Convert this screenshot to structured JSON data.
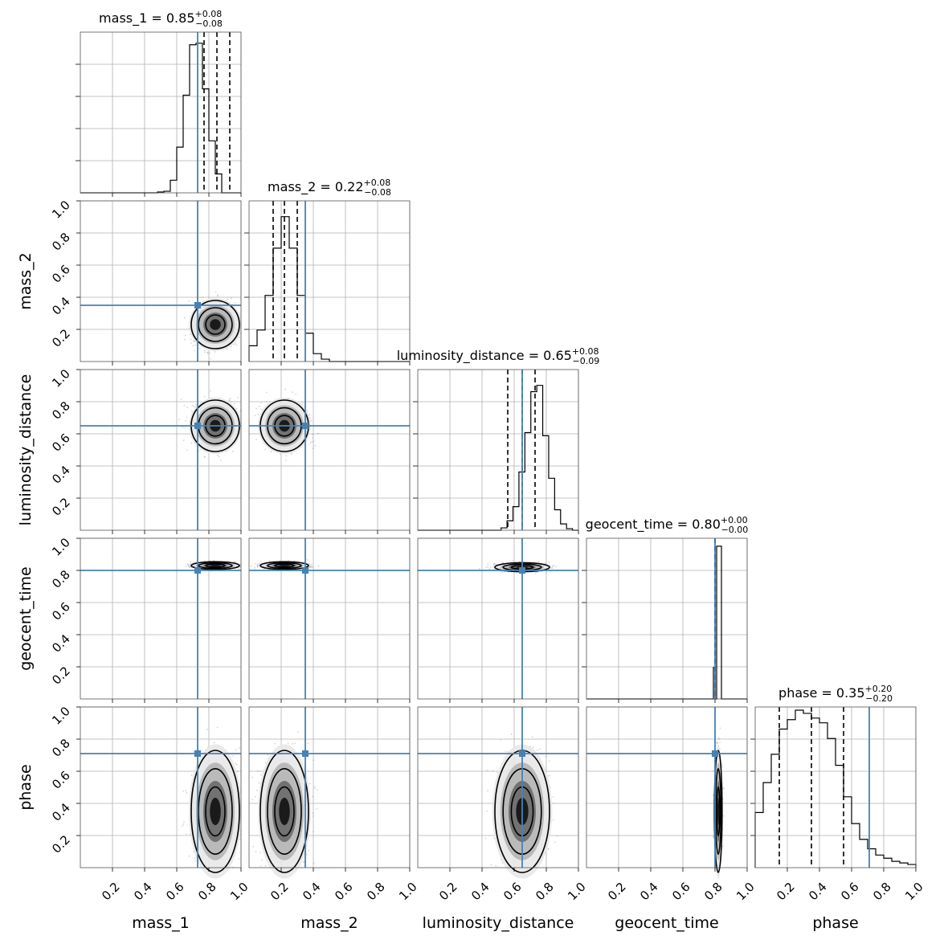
{
  "chart_data": {
    "type": "corner",
    "parameters": [
      "mass_1",
      "mass_2",
      "luminosity_distance",
      "geocent_time",
      "phase"
    ],
    "axis_range": [
      0,
      1
    ],
    "tick_labels": [
      "0.2",
      "0.4",
      "0.6",
      "0.8",
      "1.0"
    ],
    "grid": true,
    "truth_color": "#4682b4",
    "truths": [
      0.73,
      0.35,
      0.65,
      0.8,
      0.71
    ],
    "summaries": [
      {
        "param": "mass_1",
        "median": "0.85",
        "plus": "+0.08",
        "minus": "−0.08",
        "q": [
          0.77,
          0.85,
          0.93
        ]
      },
      {
        "param": "mass_2",
        "median": "0.22",
        "plus": "+0.08",
        "minus": "−0.08",
        "q": [
          0.15,
          0.22,
          0.3
        ]
      },
      {
        "param": "luminosity_distance",
        "median": "0.65",
        "plus": "+0.08",
        "minus": "−0.09",
        "q": [
          0.56,
          0.65,
          0.73
        ]
      },
      {
        "param": "geocent_time",
        "median": "0.80",
        "plus": "+0.00",
        "minus": "−0.00",
        "q": [
          0.8,
          0.8,
          0.8
        ]
      },
      {
        "param": "phase",
        "median": "0.35",
        "plus": "+0.20",
        "minus": "−0.20",
        "q": [
          0.15,
          0.35,
          0.55
        ]
      }
    ],
    "histograms": [
      {
        "param": "mass_1",
        "counts": [
          0,
          0,
          0,
          0,
          0,
          0,
          0,
          0,
          0,
          0,
          0,
          0,
          0.005,
          0.01,
          0.08,
          0.29,
          0.62,
          0.94,
          0.95,
          0.66,
          0.33,
          0.12,
          0,
          0,
          0
        ]
      },
      {
        "param": "mass_2",
        "counts": [
          0.1,
          0.2,
          0.42,
          0.72,
          0.92,
          0.72,
          0.42,
          0.18,
          0.05,
          0.015,
          0,
          0,
          0,
          0,
          0,
          0,
          0,
          0,
          0,
          0
        ]
      },
      {
        "param": "luminosity_distance",
        "counts": [
          0,
          0,
          0,
          0,
          0,
          0,
          0,
          0,
          0,
          0,
          0,
          0,
          0,
          0,
          0.015,
          0.06,
          0.15,
          0.37,
          0.62,
          0.88,
          0.92,
          0.6,
          0.33,
          0.13,
          0.04,
          0.01,
          0
        ]
      },
      {
        "param": "geocent_time",
        "counts": [
          0,
          0,
          0,
          0,
          0,
          0,
          0,
          0,
          0,
          0,
          0,
          0,
          0,
          0,
          0,
          0,
          0,
          0,
          0,
          0,
          0,
          0,
          0,
          0,
          0,
          0,
          0,
          0,
          0,
          0,
          0,
          0,
          0,
          0,
          0,
          0,
          0,
          0,
          0,
          0,
          0,
          0,
          0,
          0,
          0,
          0,
          0,
          0,
          0,
          0,
          0,
          0,
          0,
          0,
          0,
          0,
          0,
          0,
          0,
          0,
          0,
          0,
          0,
          0,
          0,
          0,
          0,
          0,
          0,
          0,
          0,
          0,
          0,
          0,
          0,
          0,
          0,
          0,
          0,
          0.2,
          0.0,
          0.97,
          0.97,
          0.97,
          0,
          0,
          0,
          0,
          0,
          0,
          0,
          0,
          0,
          0,
          0,
          0,
          0,
          0,
          0,
          0
        ]
      },
      {
        "param": "phase",
        "counts": [
          0.35,
          0.54,
          0.72,
          0.88,
          0.94,
          1.0,
          0.98,
          0.95,
          0.92,
          0.82,
          0.65,
          0.45,
          0.28,
          0.18,
          0.12,
          0.08,
          0.06,
          0.04,
          0.03,
          0.02
        ]
      }
    ],
    "blobs": [
      {
        "row": 1,
        "col": 0,
        "cx": 0.84,
        "cy": 0.23,
        "sx": 0.075,
        "sy": 0.075
      },
      {
        "row": 2,
        "col": 0,
        "cx": 0.84,
        "cy": 0.65,
        "sx": 0.075,
        "sy": 0.08
      },
      {
        "row": 2,
        "col": 1,
        "cx": 0.22,
        "cy": 0.65,
        "sx": 0.075,
        "sy": 0.08
      },
      {
        "row": 3,
        "col": 0,
        "cx": 0.84,
        "cy": 0.83,
        "sx": 0.075,
        "sy": 0.012
      },
      {
        "row": 3,
        "col": 1,
        "cx": 0.22,
        "cy": 0.83,
        "sx": 0.075,
        "sy": 0.012
      },
      {
        "row": 3,
        "col": 2,
        "cx": 0.65,
        "cy": 0.82,
        "sx": 0.085,
        "sy": 0.014
      },
      {
        "row": 4,
        "col": 0,
        "cx": 0.84,
        "cy": 0.35,
        "sx": 0.075,
        "sy": 0.19
      },
      {
        "row": 4,
        "col": 1,
        "cx": 0.22,
        "cy": 0.35,
        "sx": 0.075,
        "sy": 0.19
      },
      {
        "row": 4,
        "col": 2,
        "cx": 0.65,
        "cy": 0.35,
        "sx": 0.085,
        "sy": 0.19
      },
      {
        "row": 4,
        "col": 3,
        "cx": 0.82,
        "cy": 0.35,
        "sx": 0.012,
        "sy": 0.19
      }
    ]
  }
}
